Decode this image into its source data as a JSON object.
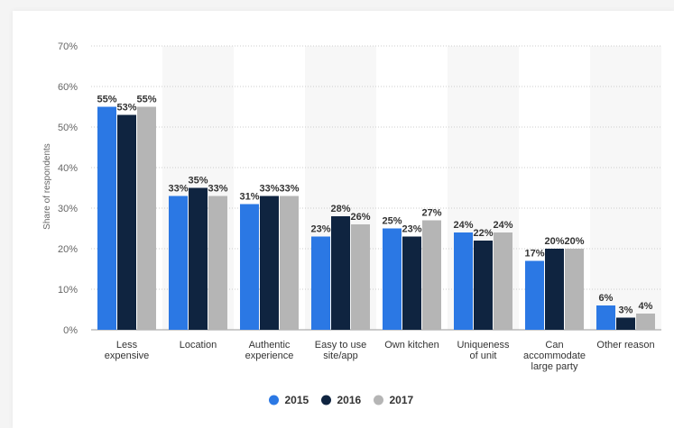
{
  "chart_data": {
    "type": "bar",
    "ylabel": "Share of respondents",
    "xlabel": "",
    "ylim": [
      0,
      70
    ],
    "y_ticks": [
      "0%",
      "10%",
      "20%",
      "30%",
      "40%",
      "50%",
      "60%",
      "70%"
    ],
    "grid": true,
    "legend_position": "bottom",
    "categories": [
      [
        "Less",
        "expensive"
      ],
      [
        "Location"
      ],
      [
        "Authentic",
        "experience"
      ],
      [
        "Easy to use",
        "site/app"
      ],
      [
        "Own kitchen"
      ],
      [
        "Uniqueness",
        "of unit"
      ],
      [
        "Can",
        "accommodate",
        "large party"
      ],
      [
        "Other reason"
      ]
    ],
    "series": [
      {
        "name": "2015",
        "color": "#2b78e4",
        "values": [
          55,
          33,
          31,
          23,
          25,
          24,
          17,
          6
        ]
      },
      {
        "name": "2016",
        "color": "#0f2440",
        "values": [
          53,
          35,
          33,
          28,
          23,
          22,
          20,
          3
        ]
      },
      {
        "name": "2017",
        "color": "#b5b5b5",
        "values": [
          55,
          33,
          33,
          26,
          27,
          24,
          20,
          4
        ]
      }
    ],
    "value_suffix": "%"
  }
}
